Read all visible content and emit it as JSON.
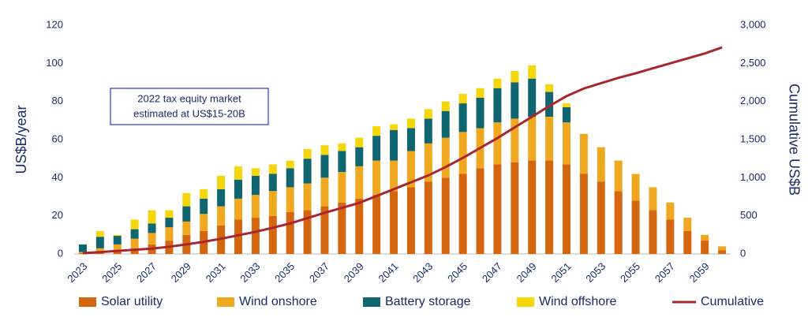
{
  "chart_data": {
    "type": "bar",
    "stacked": true,
    "annotation": [
      "2022 tax equity market",
      "estimated at US$15-20B"
    ],
    "ylabel": "US$B/year",
    "y2label": "Cumulative US$B",
    "categories": [
      "2023",
      null,
      "2025",
      null,
      "2027",
      null,
      "2029",
      null,
      "2031",
      null,
      "2033",
      null,
      "2035",
      null,
      "2037",
      null,
      "2039",
      null,
      "2041",
      null,
      "2043",
      null,
      "2045",
      null,
      "2047",
      null,
      "2049",
      null,
      "2051",
      null,
      "2053",
      null,
      "2055",
      null,
      "2057",
      null,
      "2059",
      null
    ],
    "ylim": [
      0,
      120
    ],
    "yticks": [
      0,
      20,
      40,
      60,
      80,
      100,
      120
    ],
    "y2lim": [
      0,
      3000
    ],
    "y2ticks": [
      0,
      500,
      {
        "value": 1000,
        "label": "1,000"
      },
      {
        "value": 1500,
        "label": "1,500"
      },
      {
        "value": 2000,
        "label": "2,000"
      },
      {
        "value": 2500,
        "label": "2,500"
      },
      {
        "value": 3000,
        "label": "3,000"
      }
    ],
    "series": [
      {
        "name": "Solar utility",
        "color": "#d4660f",
        "values": [
          0.5,
          1,
          2,
          3,
          5,
          7,
          10,
          12,
          15,
          18,
          19,
          20,
          22,
          23,
          25,
          27,
          29,
          31,
          33,
          35,
          38,
          40,
          42,
          45,
          47,
          48,
          49,
          49,
          47,
          42,
          38,
          33,
          28,
          23,
          18,
          12,
          7,
          2
        ]
      },
      {
        "name": "Wind onshore",
        "color": "#f0a820",
        "values": [
          0.5,
          2,
          3,
          5,
          6,
          7,
          7,
          9,
          10,
          11,
          12,
          13,
          13,
          14,
          15,
          16,
          17,
          18,
          16,
          19,
          20,
          21,
          22,
          21,
          22,
          23,
          23,
          23,
          22,
          21,
          18,
          16,
          14,
          12,
          9,
          7,
          3,
          2
        ]
      },
      {
        "name": "Battery storage",
        "color": "#0f6570",
        "values": [
          4,
          6,
          4.5,
          5,
          5,
          5,
          8,
          8,
          9,
          10,
          10,
          9,
          10,
          13,
          12,
          11,
          10,
          13,
          16,
          12,
          13,
          14,
          15,
          16,
          18,
          19,
          20,
          13,
          8,
          0,
          0,
          0,
          0,
          0,
          0,
          0,
          0,
          0
        ]
      },
      {
        "name": "Wind offshore",
        "color": "#f5d60a",
        "values": [
          0,
          3,
          0.5,
          5,
          7,
          4,
          7,
          5,
          7,
          7,
          4,
          5,
          4,
          5,
          5,
          4,
          5,
          5,
          3,
          5,
          5,
          5,
          5,
          5,
          5,
          6,
          7,
          4,
          2,
          0,
          0,
          0,
          0,
          0,
          0,
          0,
          0,
          0
        ]
      },
      {
        "name": "Cumulative",
        "color": "#a8262e",
        "type": "line",
        "axis": "y2",
        "values": [
          10,
          25,
          40,
          55,
          70,
          95,
          125,
          160,
          200,
          245,
          290,
          345,
          400,
          470,
          540,
          605,
          670,
          760,
          850,
          940,
          1030,
          1140,
          1260,
          1390,
          1520,
          1660,
          1800,
          1940,
          2070,
          2170,
          2240,
          2310,
          2370,
          2435,
          2500,
          2565,
          2630,
          2710
        ]
      }
    ]
  }
}
